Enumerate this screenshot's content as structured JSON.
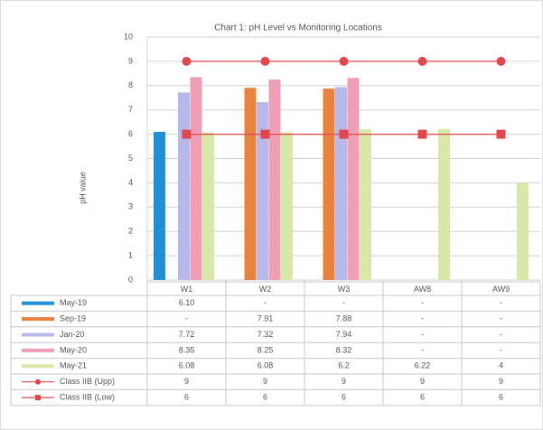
{
  "chart_data": {
    "type": "bar",
    "title": "Chart 1: pH Level vs Monitoring Locations",
    "y_label": "pH value",
    "categories": [
      "W1",
      "W2",
      "W3",
      "AW8",
      "AW9"
    ],
    "ylim": [
      0,
      10
    ],
    "yticks": [
      0,
      1,
      2,
      3,
      4,
      5,
      6,
      7,
      8,
      9,
      10
    ],
    "grid": true,
    "series": [
      {
        "name": "May-19",
        "color": "#1f8fd6",
        "values": [
          6.1,
          null,
          null,
          null,
          null
        ],
        "value_labels": [
          "6.10",
          "-",
          "-",
          "-",
          "-"
        ]
      },
      {
        "name": "Sep-19",
        "color": "#e8823f",
        "values": [
          null,
          7.91,
          7.88,
          null,
          null
        ],
        "value_labels": [
          "-",
          "7.91",
          "7.88",
          "-",
          "-"
        ]
      },
      {
        "name": "Jan-20",
        "color": "#b8b8ea",
        "values": [
          7.72,
          7.32,
          7.94,
          null,
          null
        ],
        "value_labels": [
          "7.72",
          "7.32",
          "7.94",
          "-",
          "-"
        ]
      },
      {
        "name": "May-20",
        "color": "#ef9fb5",
        "values": [
          8.35,
          8.25,
          8.32,
          null,
          null
        ],
        "value_labels": [
          "8.35",
          "8.25",
          "8.32",
          "-",
          "-"
        ]
      },
      {
        "name": "May-21",
        "color": "#d8e8a8",
        "values": [
          6.08,
          6.08,
          6.2,
          6.22,
          4
        ],
        "value_labels": [
          "6.08",
          "6.08",
          "6.2",
          "6.22",
          "4"
        ]
      },
      {
        "name": "Class IIB (Upp)",
        "type": "line",
        "marker": "circle",
        "color": "#e0474c",
        "values": [
          9,
          9,
          9,
          9,
          9
        ]
      },
      {
        "name": "Class IIB (Low)",
        "type": "line",
        "marker": "square",
        "color": "#e0474c",
        "values": [
          6,
          6,
          6,
          6,
          6
        ]
      }
    ]
  }
}
